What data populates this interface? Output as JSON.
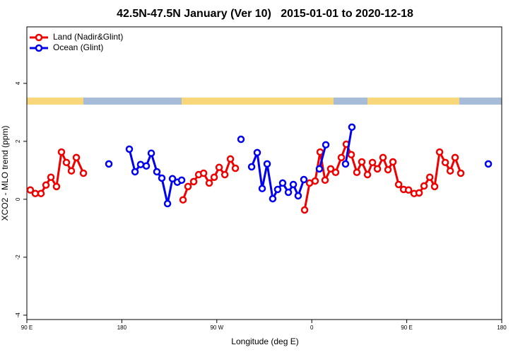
{
  "chart_data": {
    "type": "line",
    "title": "42.5N-47.5N January (Ver 10)   2015-01-01 to 2020-12-18",
    "x_label": "Longitude (deg E)",
    "y_label": "XCO2 - MLO trend (ppm)",
    "xlim": [
      90,
      540
    ],
    "ylim": [
      -4.15,
      5.95
    ],
    "xticks": [
      {
        "value": 90,
        "label": "90 E"
      },
      180,
      {
        "value": 270,
        "label": "90 W"
      },
      {
        "value": 360,
        "label": "0"
      },
      {
        "value": 450,
        "label": "90 E"
      },
      {
        "value": 540,
        "label": "180"
      }
    ],
    "yticks": [
      -4,
      -2,
      0,
      2,
      4
    ],
    "legend": "top-left",
    "series": [
      {
        "name": "Land (Nadir&Glint)",
        "color": "#ee0000",
        "x": [
          93.3,
          98,
          103.4,
          108.1,
          112.8,
          118.1,
          122.8,
          127.5,
          132.2,
          136.9,
          143.6,
          null,
          238,
          242.7,
          248.1,
          252.8,
          257.5,
          262.8,
          267.5,
          272.2,
          277.6,
          282.9,
          287.6,
          null,
          353.2,
          357.9,
          363.2,
          367.9,
          372.6,
          377.9,
          382.6,
          388,
          392.7,
          397.4,
          402.7,
          407.4,
          412.8,
          417.5,
          422.2,
          427.5,
          432.2,
          436.9,
          442.3,
          447,
          451.7,
          457,
          461.7,
          466.4,
          471.8,
          476.4,
          481.1,
          486.5,
          491.2,
          495.8,
          501.2
        ],
        "values": [
          0.32,
          0.2,
          0.2,
          0.49,
          0.76,
          0.44,
          1.63,
          1.27,
          0.98,
          1.44,
          0.9,
          null,
          -0.02,
          0.44,
          0.61,
          0.85,
          0.9,
          0.56,
          0.76,
          1.1,
          0.85,
          1.39,
          1.07,
          null,
          -0.37,
          0.56,
          0.63,
          1.63,
          0.66,
          1.05,
          0.93,
          1.44,
          1.9,
          1.54,
          0.93,
          1.29,
          0.85,
          1.27,
          1.05,
          1.44,
          1.02,
          1.29,
          0.51,
          0.34,
          0.32,
          0.2,
          0.22,
          0.46,
          0.76,
          0.44,
          1.63,
          1.27,
          0.98,
          1.44,
          0.9
        ]
      },
      {
        "name": "Ocean (Glint)",
        "color": "#0000ee",
        "x": [
          167.7,
          null,
          187.1,
          192.5,
          197.8,
          203.2,
          207.9,
          213.2,
          217.9,
          223.3,
          228,
          232.6,
          236.7,
          null,
          292.9,
          null,
          303,
          308.3,
          313,
          317.7,
          323,
          327.7,
          332.4,
          337.8,
          342.5,
          347.1,
          352.5,
          null,
          367.2,
          373.3,
          null,
          392,
          398,
          null,
          527.3
        ],
        "values": [
          1.22,
          null,
          1.73,
          0.95,
          1.2,
          1.15,
          1.59,
          0.95,
          0.73,
          -0.15,
          0.71,
          0.59,
          0.66,
          null,
          2.07,
          null,
          1.12,
          1.61,
          0.37,
          1.22,
          0.02,
          0.34,
          0.56,
          0.24,
          0.51,
          0.12,
          0.68,
          null,
          1.05,
          1.88,
          null,
          1.22,
          2.49,
          null,
          1.22
        ]
      }
    ]
  }
}
